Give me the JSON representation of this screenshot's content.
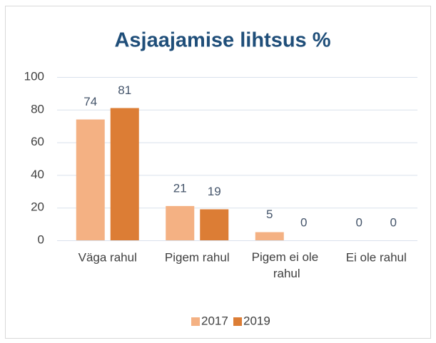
{
  "chart_data": {
    "type": "bar",
    "title": "Asjaajamise lihtsus %",
    "categories": [
      "Väga rahul",
      "Pigem rahul",
      "Pigem ei ole rahul",
      "Ei ole rahul"
    ],
    "series": [
      {
        "name": "2017",
        "color": "#f4b183",
        "values": [
          74,
          21,
          5,
          0
        ]
      },
      {
        "name": "2019",
        "color": "#dc7d35",
        "values": [
          81,
          19,
          0,
          0
        ]
      }
    ],
    "ylim": [
      0,
      100
    ],
    "yticks": [
      0,
      20,
      40,
      60,
      80,
      100
    ],
    "grid": true,
    "legend": "bottom"
  }
}
